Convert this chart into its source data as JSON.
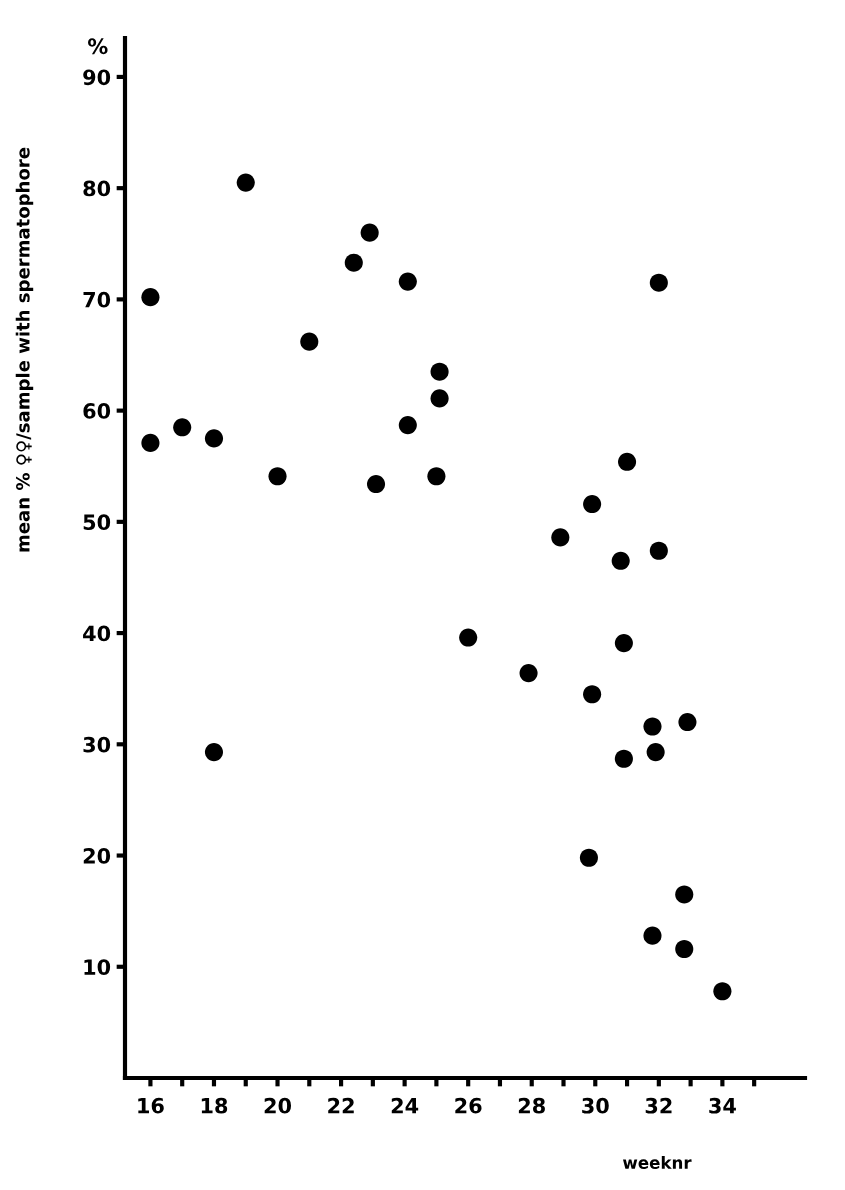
{
  "chart_data": {
    "type": "scatter",
    "xlabel": "weeknr",
    "ylabel": "mean % ♀♀/sample with spermatophore",
    "annotations": [
      "%"
    ],
    "x": [
      16,
      16,
      19,
      17,
      18,
      18,
      20,
      21,
      22.4,
      22.9,
      23.1,
      24.1,
      24.1,
      25.1,
      25.1,
      25,
      26,
      27.9,
      28.9,
      29.9,
      29.9,
      29.8,
      30.8,
      30.9,
      30.9,
      31,
      32,
      32,
      31.8,
      31.9,
      31.8,
      32.9,
      32.8,
      32.8,
      34
    ],
    "series": [
      {
        "color": "#000000",
        "values": [
          57.1,
          70.2,
          80.5,
          58.5,
          57.5,
          29.3,
          54.1,
          66.2,
          73.3,
          76.0,
          53.4,
          71.6,
          58.7,
          63.5,
          61.1,
          54.1,
          39.6,
          36.4,
          48.6,
          51.6,
          34.5,
          19.8,
          46.5,
          39.1,
          28.7,
          55.4,
          71.5,
          47.4,
          31.6,
          29.3,
          12.8,
          32.0,
          16.5,
          11.6,
          7.8
        ]
      }
    ],
    "marker": "circle",
    "xlim": [
      15.2,
      36.6
    ],
    "ylim": [
      0,
      93.5
    ],
    "xticks": [
      16,
      {
        "value": 17,
        "label": null
      },
      18,
      {
        "value": 19,
        "label": null
      },
      20,
      {
        "value": 21,
        "label": null
      },
      22,
      {
        "value": 23,
        "label": null
      },
      24,
      {
        "value": 25,
        "label": null
      },
      26,
      {
        "value": 27,
        "label": null
      },
      28,
      {
        "value": 29,
        "label": null
      },
      30,
      {
        "value": 31,
        "label": null
      },
      32,
      {
        "value": 33,
        "label": null
      },
      34,
      {
        "value": 35,
        "label": null
      }
    ],
    "yticks": [
      10,
      20,
      30,
      40,
      50,
      60,
      70,
      80,
      90
    ],
    "grid": false,
    "legend": false
  }
}
